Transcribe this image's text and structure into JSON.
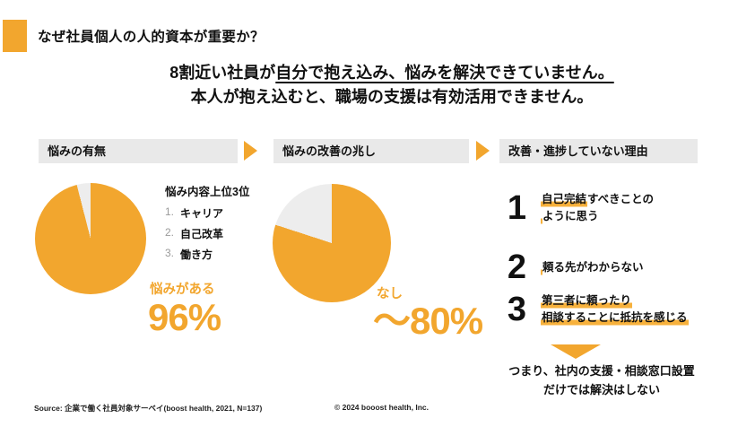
{
  "title": "なぜ社員個人の人的資本が重要か？",
  "lead": {
    "line1_plain": "8割近い社員が",
    "line1_underline": "自分で抱え込み、悩みを解決できていません。",
    "line2": "本人が抱え込むと、職場の支援は有効活用できません。"
  },
  "steps": [
    {
      "label": "悩みの有無"
    },
    {
      "label": "悩みの改善の兆し"
    },
    {
      "label": "改善・進捗していない理由"
    }
  ],
  "worry_panel": {
    "top3_title": "悩み内容上位3位",
    "top3_items": [
      {
        "num": "1.",
        "text": "キャリア"
      },
      {
        "num": "2.",
        "text": "自己改革"
      },
      {
        "num": "3.",
        "text": "働き方"
      }
    ],
    "result_label": "悩みがある",
    "result_value": "96%"
  },
  "improvement_panel": {
    "result_label": "なし",
    "result_value": "～80%"
  },
  "reasons": [
    {
      "num": "1",
      "line1_hl": "自己完結",
      "line1_rest": "すべきことの",
      "line2_hl": "",
      "line2_rest": "ように思う"
    },
    {
      "num": "2",
      "line1_hl": "",
      "line1_rest": "頼る先がわからない",
      "line2_hl": "",
      "line2_rest": ""
    },
    {
      "num": "3",
      "line1_hl": "第三者に頼ったり",
      "line1_rest": "",
      "line2_hl": "相談することに抵抗を感じる",
      "line2_rest": ""
    }
  ],
  "conclusion": {
    "line1": "つまり、社内の支援・相談窓口設置",
    "line2": "だけでは解決はしない"
  },
  "footer": {
    "source": "Source: 企業で働く社員対象サーベイ(boost health, 2021, N=137)",
    "copyright": "© 2024 booost health, Inc."
  },
  "colors": {
    "accent": "#F2A62E",
    "highlight": "#F7B13C",
    "pie_remainder": "#EDEDED",
    "header_bar": "#E9E9E9"
  },
  "chart_data": [
    {
      "type": "pie",
      "title": "悩みの有無",
      "labels": [
        "悩みがある",
        ""
      ],
      "values": [
        96,
        4
      ],
      "colors": [
        "#F2A62E",
        "#EDEDED"
      ],
      "annotation": "悩みがある 96%",
      "start_angle_deg": 0,
      "direction": "clockwise"
    },
    {
      "type": "pie",
      "title": "悩みの改善の兆し",
      "labels": [
        "なし",
        ""
      ],
      "values": [
        80,
        20
      ],
      "colors": [
        "#F2A62E",
        "#EDEDED"
      ],
      "annotation": "なし ～80%",
      "start_angle_deg": 0,
      "direction": "clockwise"
    }
  ]
}
